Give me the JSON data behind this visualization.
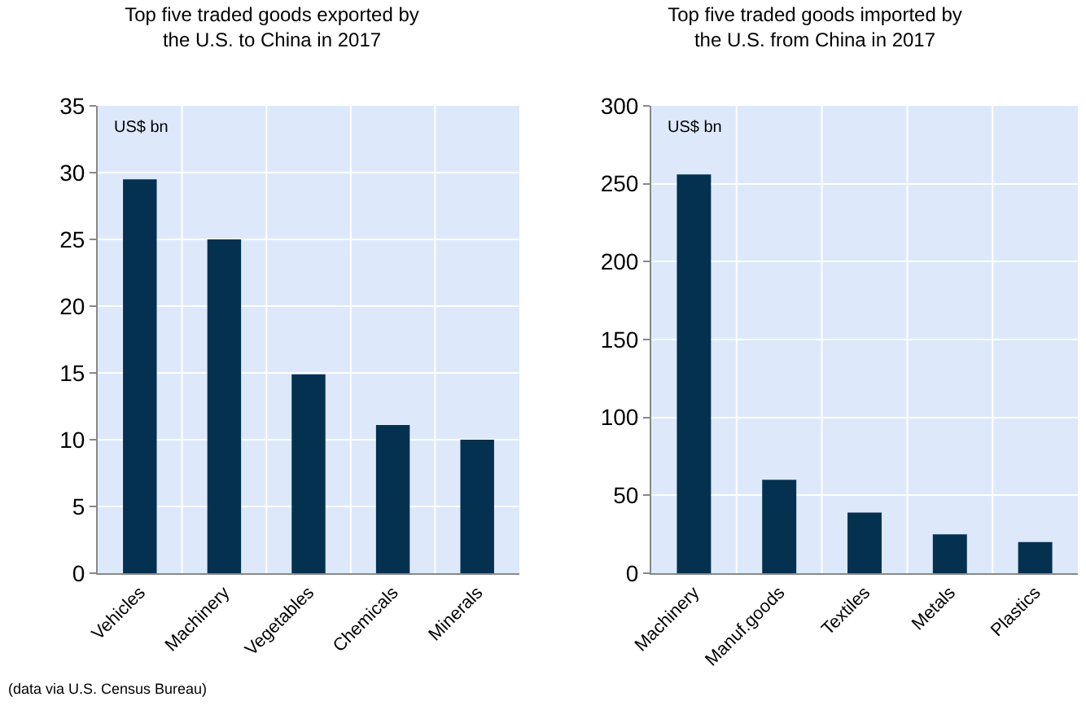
{
  "chart_data": [
    {
      "type": "bar",
      "title": "Top five traded goods exported by\nthe U.S. to China in 2017",
      "ylabel": "US$ bn",
      "categories": [
        "Vehicles",
        "Machinery",
        "Vegetables",
        "Chemicals",
        "Minerals"
      ],
      "values": [
        29.5,
        25,
        14.9,
        11.1,
        10
      ],
      "color": "#03314f",
      "ylim": [
        0,
        35
      ],
      "yticks": [
        0,
        5,
        10,
        15,
        20,
        25,
        30,
        35
      ],
      "grid": true,
      "annotations": [
        "(data via U.S. Census Bureau)"
      ]
    },
    {
      "type": "bar",
      "title": "Top five traded goods imported by\nthe U.S. from China in 2017",
      "ylabel": "US$ bn",
      "categories": [
        "Machinery",
        "Manuf.goods",
        "Textiles",
        "Metals",
        "Plastics"
      ],
      "values": [
        256,
        60,
        39,
        25,
        20
      ],
      "color": "#03314f",
      "ylim": [
        0,
        300
      ],
      "yticks": [
        0,
        50,
        100,
        150,
        200,
        250,
        300
      ],
      "grid": true
    }
  ]
}
